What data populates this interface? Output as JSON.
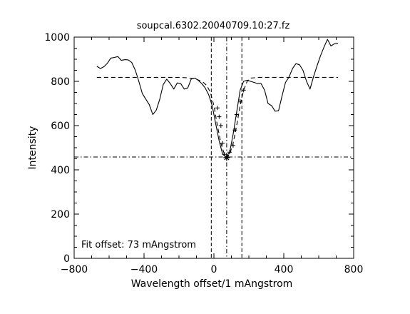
{
  "chart_data": {
    "type": "line",
    "title": "soupcal.6302.20040709.10:27.fz",
    "xlabel": "Wavelength offset/1 mAngstrom",
    "ylabel": "Intensity",
    "xlim": [
      -800,
      800
    ],
    "ylim": [
      0,
      1000
    ],
    "grid": false,
    "xticks": [
      -800,
      -400,
      0,
      400,
      800
    ],
    "yticks": [
      0,
      200,
      400,
      600,
      800,
      1000
    ],
    "xtick_labels": [
      "−800",
      "−400",
      "0",
      "400",
      "800"
    ],
    "ytick_labels": [
      "0",
      "200",
      "400",
      "600",
      "800",
      "1000"
    ],
    "annotation": "Fit offset: 73 mAngstrom",
    "series": [
      {
        "style": "solid",
        "x": [
          -670,
          -650,
          -630,
          -610,
          -590,
          -570,
          -550,
          -530,
          -510,
          -490,
          -470,
          -450,
          -430,
          -410,
          -390,
          -370,
          -350,
          -330,
          -310,
          -290,
          -270,
          -250,
          -230,
          -210,
          -190,
          -170,
          -150,
          -130,
          -110,
          -90,
          -70,
          -50,
          -30,
          -10,
          10,
          30,
          50,
          70,
          90,
          110,
          130,
          150,
          170,
          190,
          210,
          230,
          250,
          270,
          290,
          310,
          330,
          350,
          370,
          390,
          410,
          430,
          450,
          470,
          490,
          510,
          530,
          550,
          570,
          590,
          610,
          630,
          650,
          670,
          690,
          710
        ],
        "y": [
          868,
          858,
          866,
          882,
          905,
          908,
          912,
          895,
          898,
          897,
          885,
          850,
          800,
          745,
          720,
          695,
          650,
          670,
          720,
          785,
          810,
          790,
          765,
          793,
          790,
          765,
          770,
          810,
          815,
          805,
          790,
          770,
          740,
          690,
          610,
          530,
          470,
          458,
          480,
          560,
          660,
          760,
          800,
          805,
          800,
          795,
          790,
          790,
          760,
          700,
          690,
          665,
          667,
          735,
          795,
          820,
          858,
          880,
          875,
          850,
          800,
          765,
          820,
          870,
          915,
          955,
          990,
          960,
          970,
          972
        ]
      },
      {
        "style": "dashed",
        "x": [
          -670,
          -200,
          -150,
          -100,
          -60,
          -40,
          -20,
          0,
          20,
          40,
          60,
          73,
          90,
          110,
          130,
          150,
          170,
          190,
          210,
          260,
          710
        ],
        "y": [
          818,
          818,
          816,
          810,
          795,
          780,
          750,
          690,
          600,
          520,
          470,
          458,
          470,
          520,
          600,
          690,
          760,
          800,
          815,
          818,
          818
        ]
      }
    ],
    "fit_markers": {
      "x": [
        20,
        30,
        40,
        50,
        60,
        73,
        90,
        110,
        120,
        130,
        150,
        170
      ],
      "y": [
        680,
        640,
        600,
        520,
        470,
        455,
        480,
        510,
        580,
        650,
        710,
        760
      ]
    },
    "fit_center": {
      "x": 73,
      "y": 455
    },
    "vlines_dashed": [
      -15,
      160
    ],
    "vline_dashdot": 73,
    "hline_dashdot": 458
  }
}
